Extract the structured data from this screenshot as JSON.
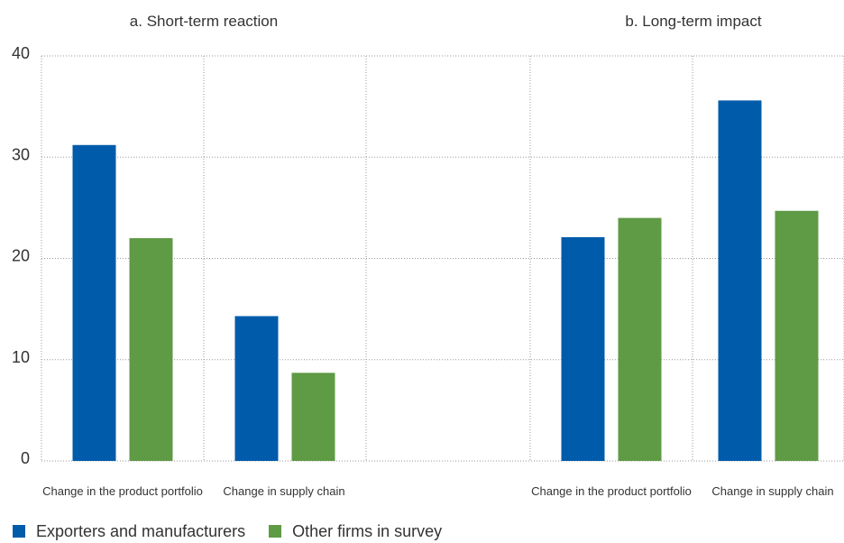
{
  "chart_data": {
    "type": "bar",
    "panels": [
      {
        "title": "a. Short-term reaction",
        "categories": [
          "Change in the product portfolio",
          "Change in supply chain"
        ]
      },
      {
        "title": "b. Long-term impact",
        "categories": [
          "Change in the product portfolio",
          "Change in supply chain"
        ]
      }
    ],
    "series": [
      {
        "name": "Exporters and manufacturers",
        "color": "#005BAA",
        "values": [
          [
            31.2,
            14.3
          ],
          [
            22.1,
            35.6
          ]
        ]
      },
      {
        "name": "Other firms in survey",
        "color": "#5F9A45",
        "values": [
          [
            22.0,
            8.7
          ],
          [
            24.0,
            24.7
          ]
        ]
      }
    ],
    "ylim": [
      0,
      40
    ],
    "yticks": [
      "0",
      "10",
      "20",
      "30",
      "40"
    ],
    "grid": "dotted",
    "legend": "bottom-left"
  }
}
